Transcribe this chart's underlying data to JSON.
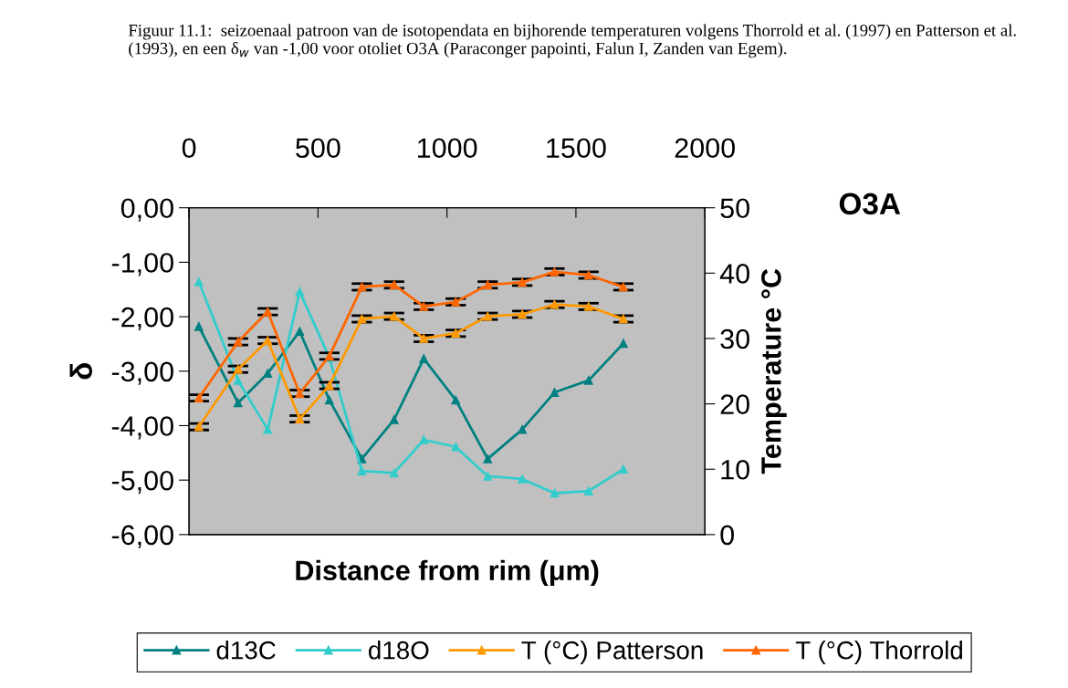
{
  "chart_data": {
    "type": "line",
    "title": "Figuur 11.1:  seizoenaal patroon van de isotopendata en bijhorende temperaturen volgens Thorrold et al. (1997) en Patterson et al. (1993), en een δ$_{w}$ van -1,00 voor otoliet O3A (Paraconger papointi, Falun I, Zanden van Egem).",
    "annotations": [
      "O3A"
    ],
    "xlabel": "Distance from rim (μm)",
    "ylabel": "δ",
    "y2label": "Temperature °C",
    "x": [
      38,
      190,
      305,
      429,
      544,
      670,
      795,
      910,
      1034,
      1158,
      1292,
      1417,
      1549,
      1684
    ],
    "series": [
      {
        "name": "d13C",
        "color": "#008080",
        "values": [
          -2.18,
          -3.58,
          -3.04,
          -2.27,
          -3.53,
          -4.61,
          -3.89,
          -2.77,
          -3.53,
          -4.61,
          -4.07,
          -3.39,
          -3.17,
          -2.49
        ]
      },
      {
        "name": "d18O",
        "color": "#33cccc",
        "values": [
          -1.36,
          -3.17,
          -4.07,
          -1.54,
          -2.75,
          -4.83,
          -4.87,
          -4.26,
          -4.39,
          -4.93,
          -4.98,
          -5.24,
          -5.2,
          -4.8
        ]
      },
      {
        "name": "T (°C) Patterson",
        "color": "#ff9900",
        "axis": "y2",
        "errors": [
          0.5,
          0.5,
          0.5,
          0.5,
          0.5,
          0.5,
          0.5,
          0.5,
          0.5,
          0.5,
          0.5,
          0.5,
          0.5,
          0.5
        ],
        "values": [
          16.5,
          25.3,
          29.7,
          17.7,
          22.8,
          33.0,
          33.4,
          30.0,
          30.8,
          33.4,
          33.7,
          35.2,
          34.9,
          33.0
        ]
      },
      {
        "name": "T (°C) Thorrold",
        "color": "#ff6600",
        "axis": "y2",
        "errors": [
          0.5,
          0.5,
          0.5,
          0.5,
          0.5,
          0.5,
          0.5,
          0.5,
          0.5,
          0.5,
          0.5,
          0.5,
          0.5,
          0.5
        ],
        "values": [
          20.9,
          29.5,
          34.1,
          21.6,
          27.3,
          37.9,
          38.2,
          34.9,
          35.6,
          38.2,
          38.6,
          40.2,
          39.7,
          37.9
        ]
      }
    ],
    "xlim": [
      0,
      2000
    ],
    "xticks": [
      0,
      500,
      1000,
      1500,
      2000
    ],
    "ylim": [
      -6,
      0
    ],
    "yticks": [
      {
        "value": 0,
        "label": "0,00"
      },
      {
        "value": -1,
        "label": "-1,00"
      },
      {
        "value": -2,
        "label": "-2,00"
      },
      {
        "value": -3,
        "label": "-3,00"
      },
      {
        "value": -4,
        "label": "-4,00"
      },
      {
        "value": -5,
        "label": "-5,00"
      },
      {
        "value": -6,
        "label": "-6,00"
      }
    ],
    "y2lim": [
      0,
      50
    ],
    "y2ticks": [
      0,
      10,
      20,
      30,
      40,
      50
    ],
    "marker": "triangle",
    "line_style": "solid",
    "grid": false,
    "legend": "bottom"
  }
}
